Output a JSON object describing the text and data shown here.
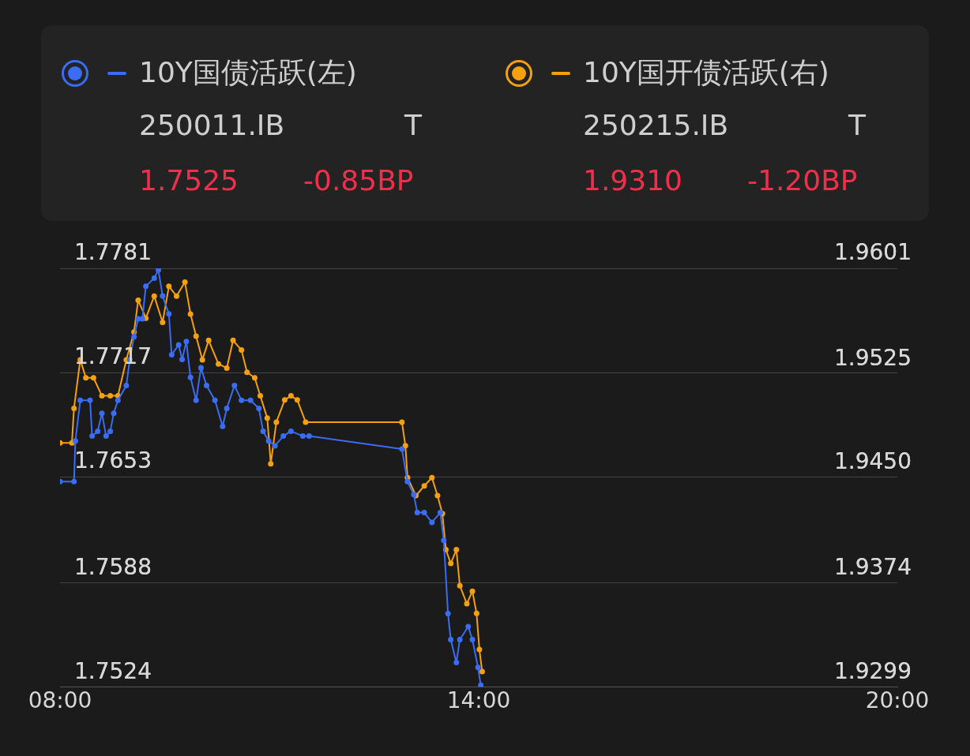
{
  "chart_data": {
    "type": "line",
    "legend": "top",
    "marker": "circle",
    "grid": "y",
    "xlim": [
      8,
      20
    ],
    "xticks": [
      {
        "value": 8,
        "label": "08:00"
      },
      {
        "value": 14,
        "label": "14:00"
      },
      {
        "value": 20,
        "label": "20:00"
      }
    ],
    "ylim": [
      1.7524,
      1.7781
    ],
    "yticks": [
      1.7524,
      1.7588,
      1.7653,
      1.7717,
      1.7781
    ],
    "y2lim": [
      1.9299,
      1.9601
    ],
    "y2ticks": [
      1.9299,
      1.9374,
      {
        "value": 1.945,
        "label": "1.9450"
      },
      1.9525,
      1.9601
    ],
    "annotations": [
      "250011.IB",
      "T",
      "1.7525",
      "-0.85BP",
      "250215.IB",
      "T",
      "1.9310",
      "-1.20BP"
    ],
    "series": [
      {
        "name": "10Y国债活跃(左)",
        "color": "#3a6cf4",
        "x": [
          8.0,
          8.2,
          8.22,
          8.29,
          8.43,
          8.46,
          8.54,
          8.6,
          8.66,
          8.72,
          8.77,
          8.83,
          8.95,
          9.0,
          9.06,
          9.12,
          9.18,
          9.23,
          9.35,
          9.41,
          9.47,
          9.56,
          9.6,
          9.7,
          9.75,
          9.81,
          9.87,
          9.95,
          10.02,
          10.1,
          10.22,
          10.33,
          10.39,
          10.5,
          10.6,
          10.73,
          10.85,
          10.91,
          10.99,
          11.08,
          11.2,
          11.31,
          11.48,
          11.57,
          12.9,
          12.98,
          13.07,
          13.12,
          13.22,
          13.33,
          13.45,
          13.5,
          13.56,
          13.6,
          13.68,
          13.73,
          13.85,
          13.91,
          13.99,
          14.03
        ],
        "values": [
          1.765,
          1.765,
          1.7675,
          1.77,
          1.77,
          1.7678,
          1.7681,
          1.7692,
          1.7678,
          1.7681,
          1.7692,
          1.77,
          1.7709,
          1.7725,
          1.7739,
          1.775,
          1.775,
          1.777,
          1.7775,
          1.778,
          1.7764,
          1.7753,
          1.7728,
          1.7734,
          1.7725,
          1.7736,
          1.7714,
          1.77,
          1.772,
          1.7709,
          1.77,
          1.7684,
          1.7695,
          1.7709,
          1.77,
          1.77,
          1.7695,
          1.7681,
          1.7675,
          1.7672,
          1.7678,
          1.7681,
          1.7678,
          1.7678,
          1.767,
          1.765,
          1.7642,
          1.7631,
          1.7631,
          1.7625,
          1.7631,
          1.7614,
          1.7569,
          1.7553,
          1.7539,
          1.7553,
          1.7561,
          1.7553,
          1.7536,
          1.7525
        ]
      },
      {
        "name": "10Y国开债活跃(右)",
        "color": "#f5a00f",
        "axis": "y2",
        "x": [
          8.0,
          8.17,
          8.2,
          8.29,
          8.37,
          8.48,
          8.6,
          8.72,
          8.83,
          8.95,
          9.06,
          9.12,
          9.23,
          9.35,
          9.47,
          9.56,
          9.67,
          9.79,
          9.87,
          9.95,
          10.04,
          10.13,
          10.27,
          10.39,
          10.48,
          10.6,
          10.68,
          10.79,
          10.87,
          10.97,
          11.02,
          11.1,
          11.22,
          11.31,
          11.4,
          11.52,
          12.9,
          12.95,
          12.98,
          13.1,
          13.22,
          13.33,
          13.41,
          13.48,
          13.53,
          13.6,
          13.68,
          13.73,
          13.83,
          13.91,
          13.97,
          14.01,
          14.05
        ],
        "values": [
          1.9475,
          1.9475,
          1.95,
          1.9535,
          1.9522,
          1.9522,
          1.9509,
          1.9509,
          1.9509,
          1.9535,
          1.9555,
          1.9578,
          1.9565,
          1.9581,
          1.9562,
          1.9588,
          1.9581,
          1.9591,
          1.9568,
          1.9552,
          1.9535,
          1.9549,
          1.9532,
          1.9529,
          1.9549,
          1.9542,
          1.9526,
          1.9522,
          1.9509,
          1.9493,
          1.946,
          1.949,
          1.9506,
          1.9509,
          1.9506,
          1.949,
          1.949,
          1.9473,
          1.945,
          1.9437,
          1.9444,
          1.945,
          1.9437,
          1.9424,
          1.9398,
          1.9388,
          1.9398,
          1.9372,
          1.9359,
          1.9368,
          1.9352,
          1.9326,
          1.931
        ]
      }
    ]
  }
}
